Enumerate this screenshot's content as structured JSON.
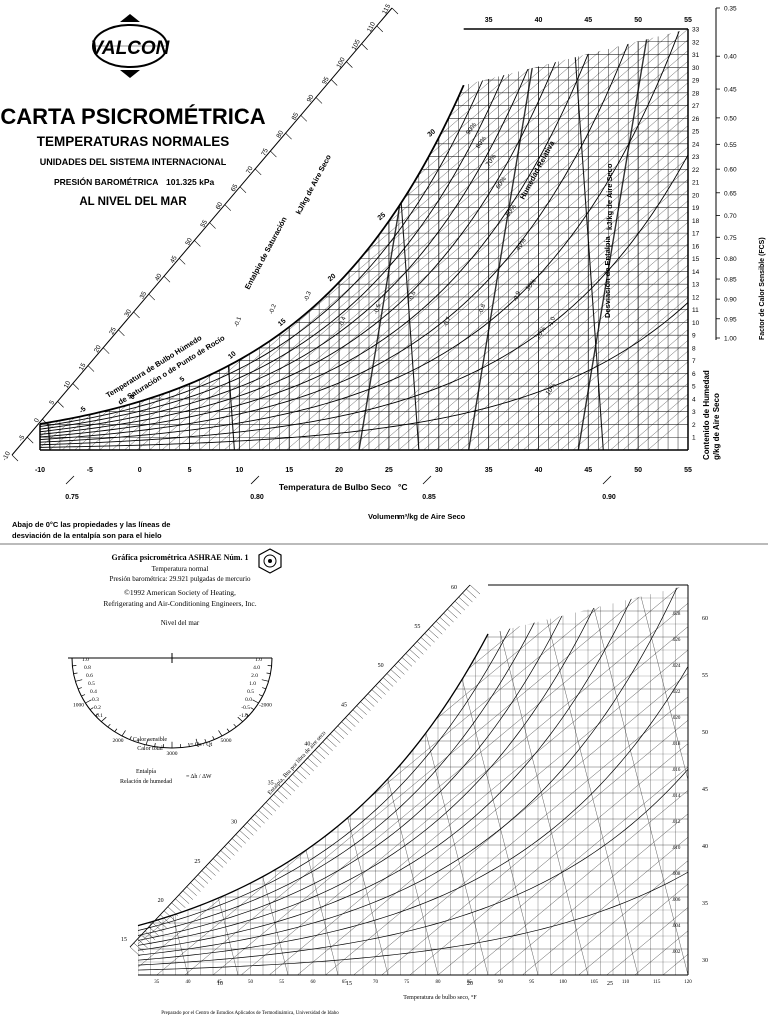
{
  "top": {
    "logo_text": "VALCON",
    "title": "CARTA PSICROMÉTRICA",
    "subtitle1": "TEMPERATURAS NORMALES",
    "subtitle2": "UNIDADES DEL SISTEMA INTERNACIONAL",
    "pressure_label": "PRESIÓN BAROMÉTRICA",
    "pressure_value": "101.325 kPa",
    "altitude": "AL NIVEL DEL MAR",
    "axis_x_label": "Temperatura de Bulbo Seco",
    "axis_x_unit": "°C",
    "volume_label": "Volumen",
    "volume_unit": "m³/kg de Aire Seco",
    "y_right_label": "Contenido de Humedad",
    "y_right_unit": "g/kg de Aire Seco",
    "shf_label": "Factor de Calor Sensible (FCS)",
    "enthalpy_sat_label": "Entalpia de Saturación",
    "enthalpy_sat_unit": "kJ/kg de Aire Seco",
    "wet_bulb_label": "Temperatura de Bulbo Húmedo",
    "dew_point_label": "de Saturación o de Punto de Rocío",
    "rh_label": "Humedad Relativa",
    "enthalpy_dev_label": "Desviación de Entalpia",
    "enthalpy_dev_unit": "kJ/kg de Aire Seco",
    "footnote1": "Abajo de 0°C las propiedades y las líneas de",
    "footnote2": "desviación de la entalpía son para el hielo",
    "x_ticks": [
      "-10",
      "-5",
      "0",
      "5",
      "10",
      "15",
      "20",
      "25",
      "30",
      "35",
      "40",
      "45",
      "50",
      "55"
    ],
    "top_ticks": [
      "35",
      "40",
      "45",
      "50",
      "55"
    ],
    "y_ticks": [
      "1",
      "2",
      "3",
      "4",
      "5",
      "6",
      "7",
      "8",
      "9",
      "10",
      "11",
      "12",
      "13",
      "14",
      "15",
      "16",
      "17",
      "18",
      "19",
      "20",
      "21",
      "22",
      "23",
      "24",
      "25",
      "26",
      "27",
      "28",
      "29",
      "30",
      "31",
      "32",
      "33"
    ],
    "shf_ticks": [
      "0.35",
      "0.40",
      "0.45",
      "0.50",
      "0.55",
      "0.60",
      "0.65",
      "0.70",
      "0.75",
      "0.80",
      "0.85",
      "0.90",
      "0.95",
      "1.00"
    ],
    "volume_ticks": [
      "0.75",
      "0.80",
      "0.85",
      "0.90"
    ],
    "enthalpy_ticks": [
      "-10",
      "-5",
      "0",
      "5",
      "10",
      "15",
      "20",
      "25",
      "30",
      "35",
      "40",
      "45",
      "50",
      "55",
      "60",
      "65",
      "70",
      "75",
      "80",
      "85",
      "90",
      "95",
      "100",
      "105",
      "110",
      "115"
    ],
    "wet_bulb_ticks": [
      "-5",
      "0",
      "5",
      "10",
      "15",
      "20",
      "25",
      "30"
    ],
    "rh_labels": [
      "10%",
      "20%",
      "30%",
      "40%",
      "50%",
      "60%",
      "70%",
      "80%",
      "90%"
    ],
    "dev_labels": [
      "-0.1",
      "-0.2",
      "-0.3",
      "-0.4",
      "-0.5",
      "-0.6",
      "-0.7",
      "-0.8",
      "-0.9",
      "-1.0"
    ]
  },
  "bottom": {
    "title": "Gráfica psicrométrica ASHRAE Núm. 1",
    "line1": "Temperatura normal",
    "line2": "Presión barométrica: 29.921 pulgadas de mercurio",
    "copyright1": "©1992 American Society of Heating,",
    "copyright2": "Refrigerating and Air-Conditioning Engineers, Inc.",
    "altitude": "Nivel del mar",
    "sens_num": "Calor sensible",
    "sens_den": "Calor total",
    "sens_eq": "= Qs / Qt",
    "enth_num": "Entalpía",
    "enth_den": "Relación de humedad",
    "enth_eq": "= Δh / ΔW",
    "axis_x_label": "Temperatura de bulbo seco, °F",
    "footer": "Preparado por el Centro de Estudios Aplicados de Termodinámica, Universidad de Idaho",
    "enthalpy_label": "Entalpía, Btu por libra de aire seco",
    "x_ticks": [
      "35",
      "40",
      "45",
      "50",
      "55",
      "60",
      "65",
      "70",
      "75",
      "80",
      "85",
      "90",
      "95",
      "100",
      "105",
      "110",
      "115",
      "120"
    ],
    "bottom_ticks": [
      "10",
      "15",
      "20",
      "25"
    ],
    "right_ticks": [
      "60",
      "55",
      "50",
      "45",
      "40",
      "35",
      "30"
    ],
    "inner_right_ticks": [
      ".028",
      ".026",
      ".024",
      ".022",
      ".020",
      ".018",
      ".016",
      ".014",
      ".012",
      ".010",
      ".008",
      ".006",
      ".004",
      ".002"
    ],
    "enthalpy_ticks": [
      "15",
      "20",
      "25",
      "30",
      "35",
      "40",
      "45",
      "50",
      "55",
      "60"
    ],
    "protractor_left": [
      "1.0",
      "0.8",
      "0.6",
      "0.5",
      "0.4",
      "0.3",
      "0.2",
      "0.1"
    ],
    "protractor_right": [
      "1.0",
      "4.0",
      "2.0",
      "1.0",
      "0.5",
      "0.0",
      "-0.5",
      "-1.0"
    ],
    "protractor_bottom": [
      "1000",
      "2000",
      "3000",
      "5000",
      "-2000"
    ]
  }
}
